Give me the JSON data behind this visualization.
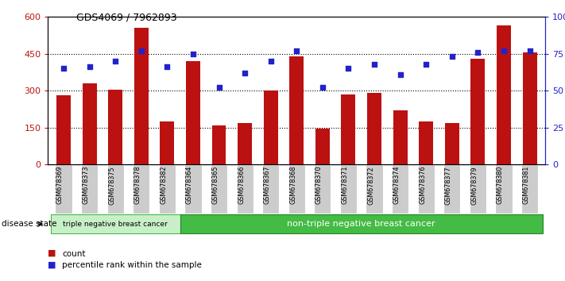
{
  "title": "GDS4069 / 7962893",
  "categories": [
    "GSM678369",
    "GSM678373",
    "GSM678375",
    "GSM678378",
    "GSM678382",
    "GSM678364",
    "GSM678365",
    "GSM678366",
    "GSM678367",
    "GSM678368",
    "GSM678370",
    "GSM678371",
    "GSM678372",
    "GSM678374",
    "GSM678376",
    "GSM678377",
    "GSM678379",
    "GSM678380",
    "GSM678381"
  ],
  "bar_values": [
    280,
    330,
    305,
    555,
    175,
    420,
    160,
    168,
    300,
    440,
    145,
    285,
    290,
    220,
    175,
    168,
    430,
    565,
    455
  ],
  "dot_pct": [
    65,
    66,
    70,
    77,
    66,
    75,
    52,
    62,
    70,
    77,
    52,
    65,
    68,
    61,
    68,
    73,
    76,
    77,
    77
  ],
  "ylim_left": [
    0,
    600
  ],
  "ylim_right": [
    0,
    100
  ],
  "yticks_left": [
    0,
    150,
    300,
    450,
    600
  ],
  "yticks_right": [
    0,
    25,
    50,
    75,
    100
  ],
  "ytick_labels_right": [
    "0",
    "25",
    "50",
    "75",
    "100%"
  ],
  "bar_color": "#bb1111",
  "dot_color": "#2222cc",
  "group1_label": "triple negative breast cancer",
  "group2_label": "non-triple negative breast cancer",
  "group1_count": 5,
  "group2_count": 14,
  "disease_state_label": "disease state",
  "legend_bar": "count",
  "legend_dot": "percentile rank within the sample",
  "group1_bg": "#c8f0c8",
  "group2_bg": "#44bb44"
}
